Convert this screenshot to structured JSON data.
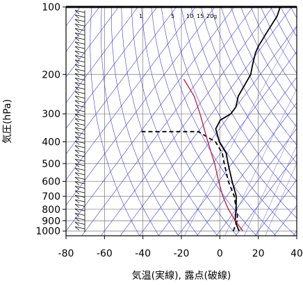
{
  "chart_data": {
    "type": "line",
    "subtype": "skew-T log-p thermodynamic diagram",
    "xlabel": "気温(実線), 露点(破線)",
    "ylabel": "気圧(hPa)",
    "x_ticks": [
      -80,
      -60,
      -40,
      -20,
      0,
      20,
      40
    ],
    "y_ticks": [
      100,
      200,
      300,
      400,
      500,
      600,
      700,
      800,
      900,
      1000
    ],
    "xlim": [
      -80,
      40
    ],
    "ylim": [
      1050,
      100
    ],
    "y_scale": "log",
    "grid": true,
    "mixing_ratio_labels": [
      "1",
      "5",
      "10",
      "15",
      "20g"
    ],
    "series": [
      {
        "name": "",
        "style": "solid",
        "color": "#000000",
        "points": [
          [
            1000,
            10
          ],
          [
            950,
            7
          ],
          [
            900,
            4
          ],
          [
            850,
            2
          ],
          [
            800,
            0
          ],
          [
            700,
            -5
          ],
          [
            600,
            -13
          ],
          [
            500,
            -22
          ],
          [
            450,
            -27
          ],
          [
            400,
            -35
          ],
          [
            350,
            -42
          ],
          [
            320,
            -43
          ],
          [
            300,
            -40
          ],
          [
            280,
            -40
          ],
          [
            250,
            -43
          ],
          [
            200,
            -45
          ],
          [
            180,
            -48
          ],
          [
            160,
            -51
          ],
          [
            150,
            -52
          ],
          [
            130,
            -53
          ],
          [
            110,
            -54
          ],
          [
            100,
            -56
          ]
        ]
      },
      {
        "name": "",
        "style": "dashed",
        "color": "#000000",
        "points": [
          [
            1000,
            7
          ],
          [
            950,
            6
          ],
          [
            900,
            5
          ],
          [
            850,
            3
          ],
          [
            800,
            0
          ],
          [
            700,
            -6
          ],
          [
            600,
            -15
          ],
          [
            500,
            -24
          ],
          [
            450,
            -29
          ],
          [
            400,
            -37
          ],
          [
            360,
            -50
          ],
          [
            360,
            -80
          ]
        ]
      },
      {
        "name": "",
        "style": "solid",
        "color": "#c0143c",
        "points": [
          [
            1000,
            12
          ],
          [
            900,
            4
          ],
          [
            800,
            -4
          ],
          [
            700,
            -12
          ],
          [
            600,
            -20
          ],
          [
            500,
            -29
          ],
          [
            400,
            -41
          ],
          [
            300,
            -56
          ],
          [
            250,
            -66
          ],
          [
            210,
            -78
          ]
        ]
      }
    ],
    "wind_barbs": "column of wind barbs along the left edge from 1000 to 100 hPa"
  }
}
